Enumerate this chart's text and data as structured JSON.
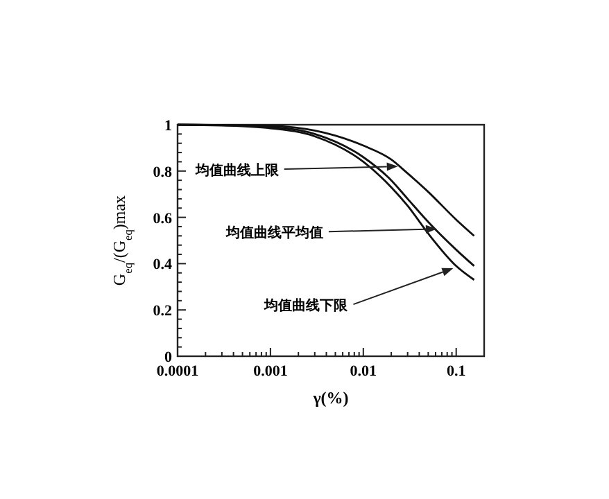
{
  "chart_data": {
    "type": "line",
    "xlabel": "γ(%)",
    "ylabel": "G$_{eq}$/(G$_{eq}$)max",
    "log": "x",
    "xlim": [
      0.0001,
      0.2
    ],
    "xticks": [
      {
        "value": 0.0001,
        "label": "0.0001"
      },
      {
        "value": 0.001,
        "label": "0.001"
      },
      {
        "value": 0.01,
        "label": "0.01"
      },
      {
        "value": 0.1,
        "label": "0.1"
      }
    ],
    "ylim": [
      0,
      1
    ],
    "yticks": [
      0,
      0.2,
      0.4,
      0.6,
      0.8,
      1
    ],
    "grid": false,
    "marker": "none",
    "line_style": "solid",
    "series": [
      {
        "color": "#111111",
        "x": [
          0.0001,
          0.0003,
          0.001,
          0.003,
          0.01,
          0.02,
          0.03,
          0.05,
          0.1,
          0.156
        ],
        "values": [
          1,
          0.998,
          0.995,
          0.975,
          0.91,
          0.85,
          0.79,
          0.71,
          0.59,
          0.52
        ]
      },
      {
        "color": "#111111",
        "x": [
          0.0001,
          0.0003,
          0.001,
          0.003,
          0.01,
          0.02,
          0.03,
          0.05,
          0.1,
          0.156
        ],
        "values": [
          1,
          0.998,
          0.99,
          0.96,
          0.86,
          0.76,
          0.68,
          0.58,
          0.46,
          0.39
        ]
      },
      {
        "color": "#111111",
        "x": [
          0.0001,
          0.0003,
          0.001,
          0.003,
          0.01,
          0.02,
          0.03,
          0.05,
          0.1,
          0.156
        ],
        "values": [
          1,
          0.997,
          0.985,
          0.95,
          0.84,
          0.73,
          0.65,
          0.53,
          0.39,
          0.33
        ]
      }
    ],
    "annotations": [
      {
        "text": "均值曲线上限",
        "x": 0.0236,
        "y": 0.82
      },
      {
        "text": "均值曲线平均值",
        "x": 0.062,
        "y": 0.55
      },
      {
        "text": "均值曲线下限",
        "x": 0.093,
        "y": 0.38
      }
    ]
  }
}
